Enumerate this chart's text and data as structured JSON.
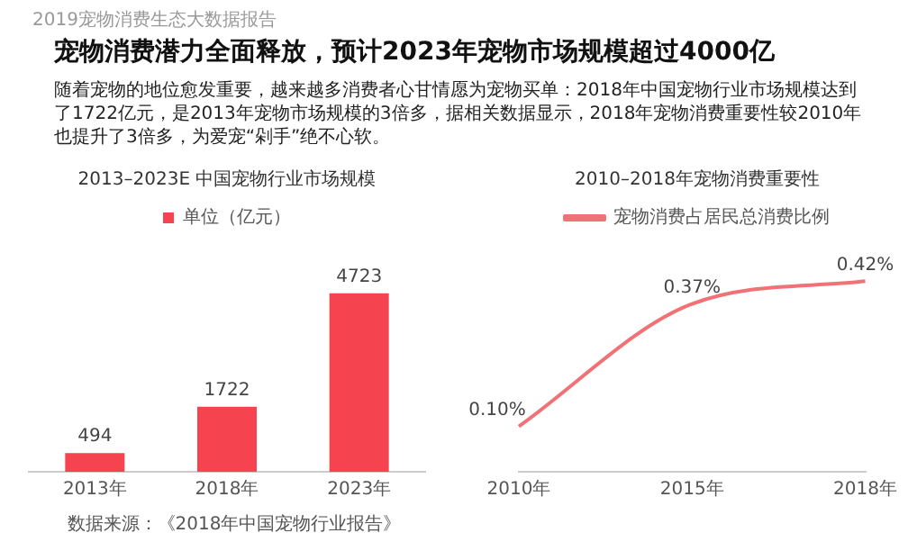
{
  "chart_data": [
    {
      "type": "bar",
      "title": "2013–2023E 中国宠物行业市场规模",
      "categories": [
        "2013年",
        "2018年",
        "2023年"
      ],
      "series": [
        {
          "name": "单位（亿元）",
          "color": "#f5434f",
          "values": [
            494,
            1722,
            4723
          ]
        }
      ],
      "data_labels": true,
      "legend": "top",
      "grid": false,
      "tick_labels": "x",
      "annotations": [
        "2019宠物消费生态大数据报告",
        "宠物消费潜力全面释放，预计2023年宠物市场规模超过4000亿",
        "随着宠物的地位愈发重要，越来越多消费者心甘情愿为宠物买单：2018年中国宠物行业市场规模达到了1722亿元，是2013年宠物市场规模的3倍多，据相关数据显示，2018年宠物消费重要性较2010年也提升了3倍多，为爱宠“剁手”绝不心软。",
        "数据来源：《2018年中国宠物行业报告》"
      ]
    },
    {
      "type": "line",
      "title": "2010–2018年宠物消费重要性",
      "categories": [
        "2010年",
        "2015年",
        "2018年"
      ],
      "series": [
        {
          "name": "宠物消费占居民总消费比例",
          "color": "#f07276",
          "values": [
            0.1,
            0.37,
            0.42
          ],
          "value_labels": [
            "0.10%",
            "0.37%",
            "0.42%"
          ]
        }
      ],
      "legend": "top",
      "grid": false,
      "tick_labels": "x",
      "marker": "none",
      "line_style": "solid"
    }
  ]
}
